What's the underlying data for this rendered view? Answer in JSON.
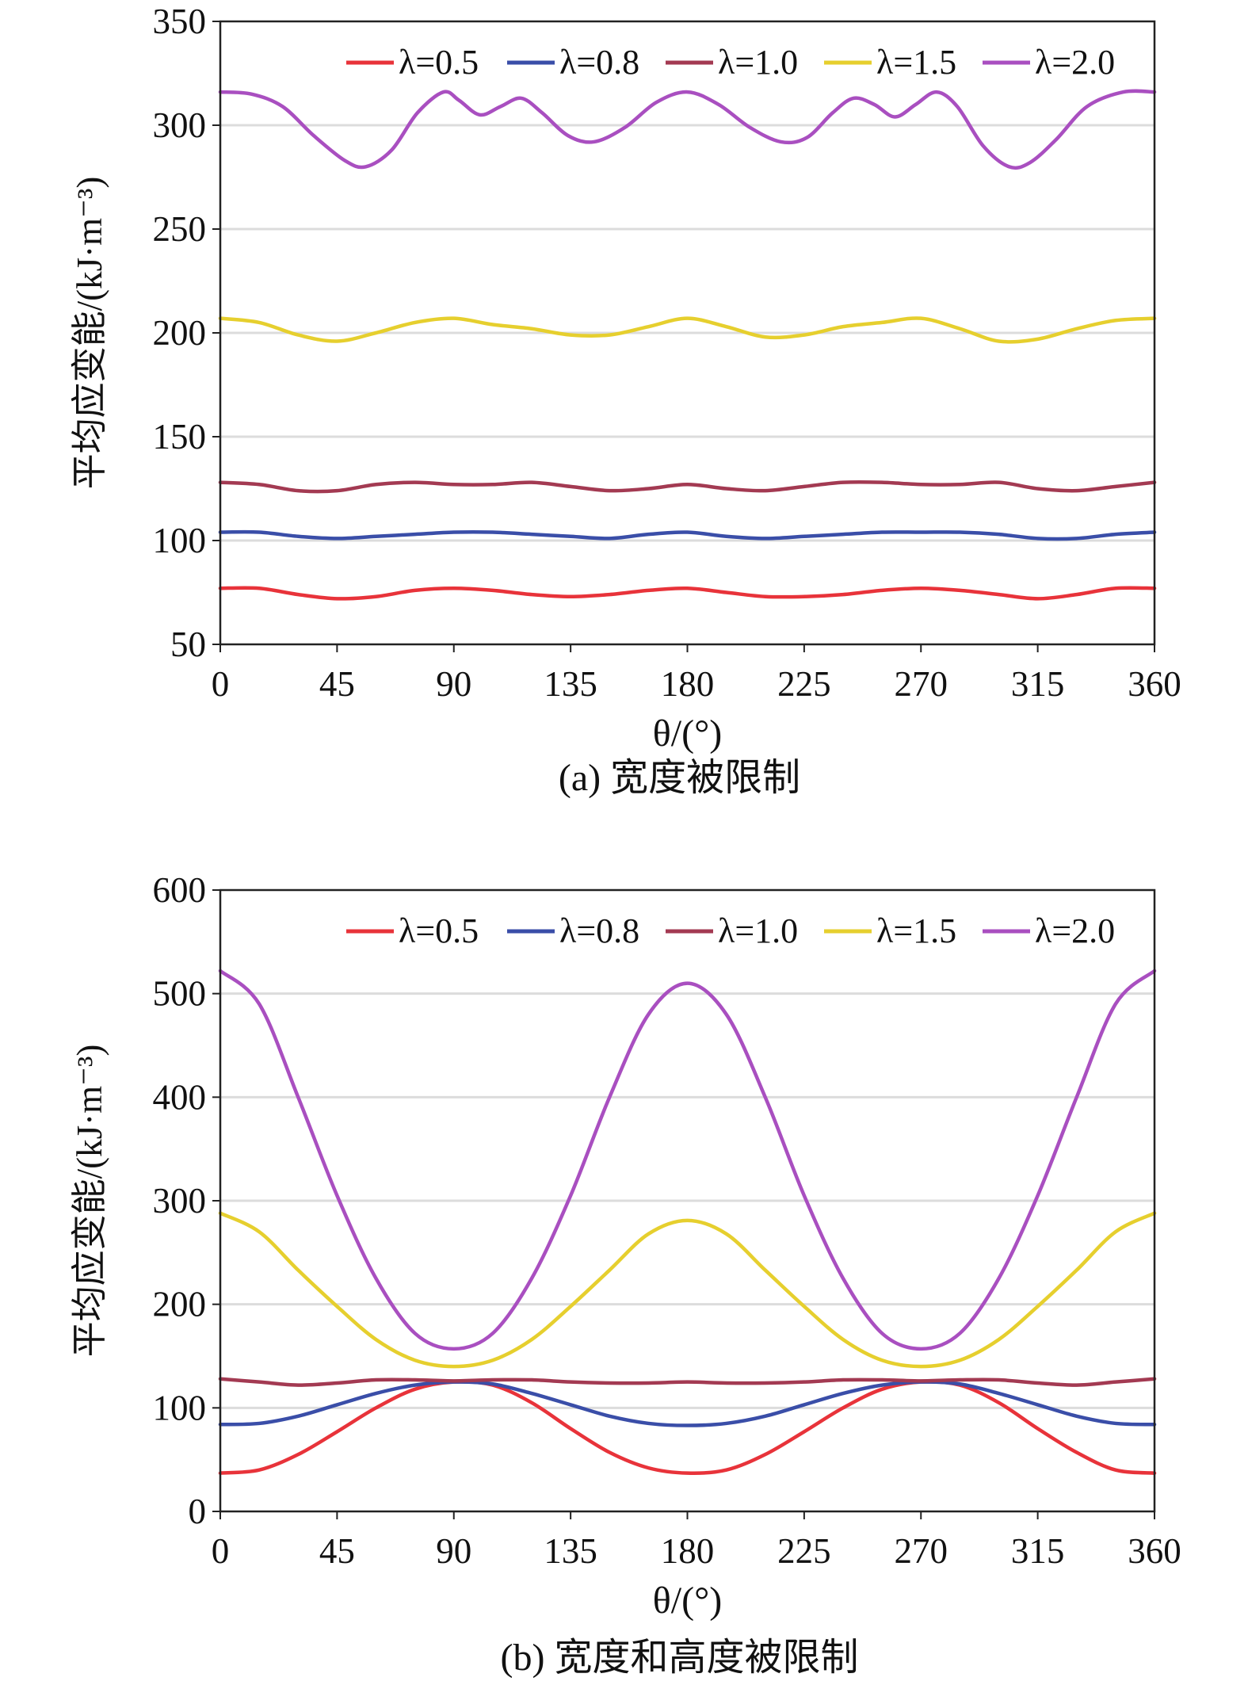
{
  "colors": {
    "l05": "#e8333a",
    "l08": "#3a4ea8",
    "l10": "#a33a52",
    "l15": "#e6cf2e",
    "l20": "#a94fc0",
    "grid": "#dcdcdc",
    "axis": "#222222"
  },
  "chart_data": [
    {
      "type": "line",
      "caption": "(a) 宽度被限制",
      "xlabel": "θ/(°)",
      "ylabel": "平均应变能/(kJ·m⁻³)",
      "xlim": [
        0,
        360
      ],
      "ylim": [
        50,
        350
      ],
      "xticks": [
        "0",
        "45",
        "90",
        "135",
        "180",
        "225",
        "270",
        "315",
        "360"
      ],
      "yticks": [
        "50",
        "100",
        "150",
        "200",
        "250",
        "300",
        "350"
      ],
      "grid": "horizontal",
      "legend_position": "top, single row",
      "series": [
        {
          "name": "λ=0.5",
          "color_key": "l05",
          "x": [
            0,
            15,
            30,
            45,
            60,
            75,
            90,
            105,
            120,
            135,
            150,
            165,
            180,
            195,
            210,
            225,
            240,
            255,
            270,
            285,
            300,
            315,
            330,
            345,
            360
          ],
          "y": [
            77,
            77,
            74,
            72,
            73,
            76,
            77,
            76,
            74,
            73,
            74,
            76,
            77,
            75,
            73,
            73,
            74,
            76,
            77,
            76,
            74,
            72,
            74,
            77,
            77
          ]
        },
        {
          "name": "λ=0.8",
          "color_key": "l08",
          "x": [
            0,
            15,
            30,
            45,
            60,
            75,
            90,
            105,
            120,
            135,
            150,
            165,
            180,
            195,
            210,
            225,
            240,
            255,
            270,
            285,
            300,
            315,
            330,
            345,
            360
          ],
          "y": [
            104,
            104,
            102,
            101,
            102,
            103,
            104,
            104,
            103,
            102,
            101,
            103,
            104,
            102,
            101,
            102,
            103,
            104,
            104,
            104,
            103,
            101,
            101,
            103,
            104
          ]
        },
        {
          "name": "λ=1.0",
          "color_key": "l10",
          "x": [
            0,
            15,
            30,
            45,
            60,
            75,
            90,
            105,
            120,
            135,
            150,
            165,
            180,
            195,
            210,
            225,
            240,
            255,
            270,
            285,
            300,
            315,
            330,
            345,
            360
          ],
          "y": [
            128,
            127,
            124,
            124,
            127,
            128,
            127,
            127,
            128,
            126,
            124,
            125,
            127,
            125,
            124,
            126,
            128,
            128,
            127,
            127,
            128,
            125,
            124,
            126,
            128
          ]
        },
        {
          "name": "λ=1.5",
          "color_key": "l15",
          "x": [
            0,
            15,
            30,
            45,
            60,
            75,
            90,
            105,
            120,
            135,
            150,
            165,
            180,
            195,
            210,
            225,
            240,
            255,
            270,
            285,
            300,
            315,
            330,
            345,
            360
          ],
          "y": [
            207,
            205,
            199,
            196,
            200,
            205,
            207,
            204,
            202,
            199,
            199,
            203,
            207,
            203,
            198,
            199,
            203,
            205,
            207,
            202,
            196,
            197,
            202,
            206,
            207
          ]
        },
        {
          "name": "λ=2.0",
          "color_key": "l20",
          "x": [
            0,
            12,
            24,
            36,
            48,
            56,
            66,
            76,
            86,
            92,
            100,
            108,
            116,
            124,
            134,
            144,
            156,
            168,
            180,
            192,
            204,
            216,
            226,
            236,
            244,
            252,
            260,
            268,
            276,
            284,
            294,
            304,
            312,
            322,
            334,
            348,
            360
          ],
          "y": [
            316,
            315,
            309,
            295,
            283,
            280,
            288,
            306,
            316,
            312,
            305,
            309,
            313,
            306,
            295,
            292,
            299,
            311,
            316,
            310,
            299,
            292,
            294,
            306,
            313,
            310,
            304,
            310,
            316,
            309,
            290,
            280,
            282,
            293,
            309,
            316,
            316
          ]
        }
      ]
    },
    {
      "type": "line",
      "caption": "(b) 宽度和高度被限制",
      "xlabel": "θ/(°)",
      "ylabel": "平均应变能/(kJ·m⁻³)",
      "xlim": [
        0,
        360
      ],
      "ylim": [
        0,
        600
      ],
      "xticks": [
        "0",
        "45",
        "90",
        "135",
        "180",
        "225",
        "270",
        "315",
        "360"
      ],
      "yticks": [
        "0",
        "100",
        "200",
        "300",
        "400",
        "500",
        "600"
      ],
      "grid": "horizontal",
      "legend_position": "top, single row",
      "series": [
        {
          "name": "λ=0.5",
          "color_key": "l05",
          "x": [
            0,
            15,
            30,
            45,
            60,
            75,
            90,
            105,
            120,
            135,
            150,
            165,
            180,
            195,
            210,
            225,
            240,
            255,
            270,
            285,
            300,
            315,
            330,
            345,
            360
          ],
          "y": [
            37,
            40,
            55,
            77,
            100,
            118,
            125,
            122,
            105,
            80,
            57,
            42,
            37,
            40,
            55,
            77,
            100,
            118,
            125,
            122,
            105,
            80,
            57,
            40,
            37
          ]
        },
        {
          "name": "λ=0.8",
          "color_key": "l08",
          "x": [
            0,
            15,
            30,
            45,
            60,
            75,
            90,
            105,
            120,
            135,
            150,
            165,
            180,
            195,
            210,
            225,
            240,
            255,
            270,
            285,
            300,
            315,
            330,
            345,
            360
          ],
          "y": [
            84,
            85,
            92,
            103,
            114,
            122,
            125,
            123,
            114,
            103,
            92,
            85,
            83,
            85,
            92,
            103,
            114,
            122,
            125,
            123,
            114,
            103,
            92,
            85,
            84
          ]
        },
        {
          "name": "λ=1.0",
          "color_key": "l10",
          "x": [
            0,
            15,
            30,
            45,
            60,
            75,
            90,
            105,
            120,
            135,
            150,
            165,
            180,
            195,
            210,
            225,
            240,
            255,
            270,
            285,
            300,
            315,
            330,
            345,
            360
          ],
          "y": [
            128,
            125,
            122,
            124,
            127,
            127,
            126,
            127,
            127,
            125,
            124,
            124,
            125,
            124,
            124,
            125,
            127,
            127,
            126,
            127,
            127,
            124,
            122,
            125,
            128
          ]
        },
        {
          "name": "λ=1.5",
          "color_key": "l15",
          "x": [
            0,
            15,
            30,
            45,
            60,
            75,
            90,
            105,
            120,
            135,
            150,
            165,
            180,
            195,
            210,
            225,
            240,
            255,
            270,
            285,
            300,
            315,
            330,
            345,
            360
          ],
          "y": [
            288,
            270,
            233,
            198,
            166,
            146,
            140,
            146,
            166,
            198,
            233,
            268,
            281,
            268,
            233,
            198,
            166,
            146,
            140,
            146,
            166,
            198,
            233,
            270,
            288
          ]
        },
        {
          "name": "λ=2.0",
          "color_key": "l20",
          "x": [
            0,
            15,
            30,
            45,
            60,
            75,
            90,
            105,
            120,
            135,
            150,
            165,
            180,
            195,
            210,
            225,
            240,
            255,
            270,
            285,
            300,
            315,
            330,
            345,
            360
          ],
          "y": [
            522,
            490,
            400,
            305,
            225,
            172,
            157,
            172,
            225,
            305,
            400,
            480,
            510,
            480,
            400,
            305,
            225,
            172,
            157,
            172,
            225,
            305,
            400,
            490,
            522
          ]
        }
      ]
    }
  ]
}
